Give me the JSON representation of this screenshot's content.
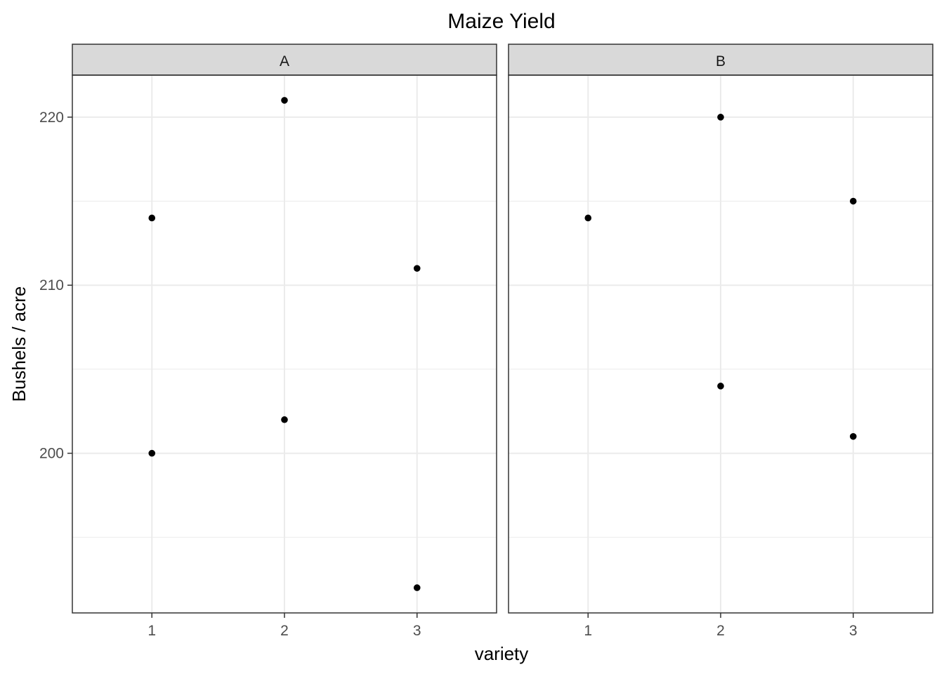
{
  "chart_data": {
    "type": "scatter",
    "title": "Maize Yield",
    "xlabel": "variety",
    "ylabel": "Bushels / acre",
    "x_ticks": [
      "1",
      "2",
      "3"
    ],
    "y_ticks": [
      200,
      210,
      220
    ],
    "ylim": [
      190.5,
      222.5
    ],
    "xlim": [
      0.4,
      3.6
    ],
    "grid": true,
    "facets": [
      {
        "label": "A",
        "points": [
          {
            "x": 1,
            "y": 214
          },
          {
            "x": 1,
            "y": 200
          },
          {
            "x": 2,
            "y": 221
          },
          {
            "x": 2,
            "y": 202
          },
          {
            "x": 3,
            "y": 211
          },
          {
            "x": 3,
            "y": 192
          }
        ]
      },
      {
        "label": "B",
        "points": [
          {
            "x": 1,
            "y": 214
          },
          {
            "x": 2,
            "y": 220
          },
          {
            "x": 2,
            "y": 204
          },
          {
            "x": 3,
            "y": 215
          },
          {
            "x": 3,
            "y": 201
          }
        ]
      }
    ],
    "colors": {
      "point": "#000000",
      "strip_bg": "#d9d9d9",
      "grid": "#ebebeb",
      "border": "#333333",
      "tick_text": "#4d4d4d",
      "strip_text": "#1a1a1a"
    }
  }
}
